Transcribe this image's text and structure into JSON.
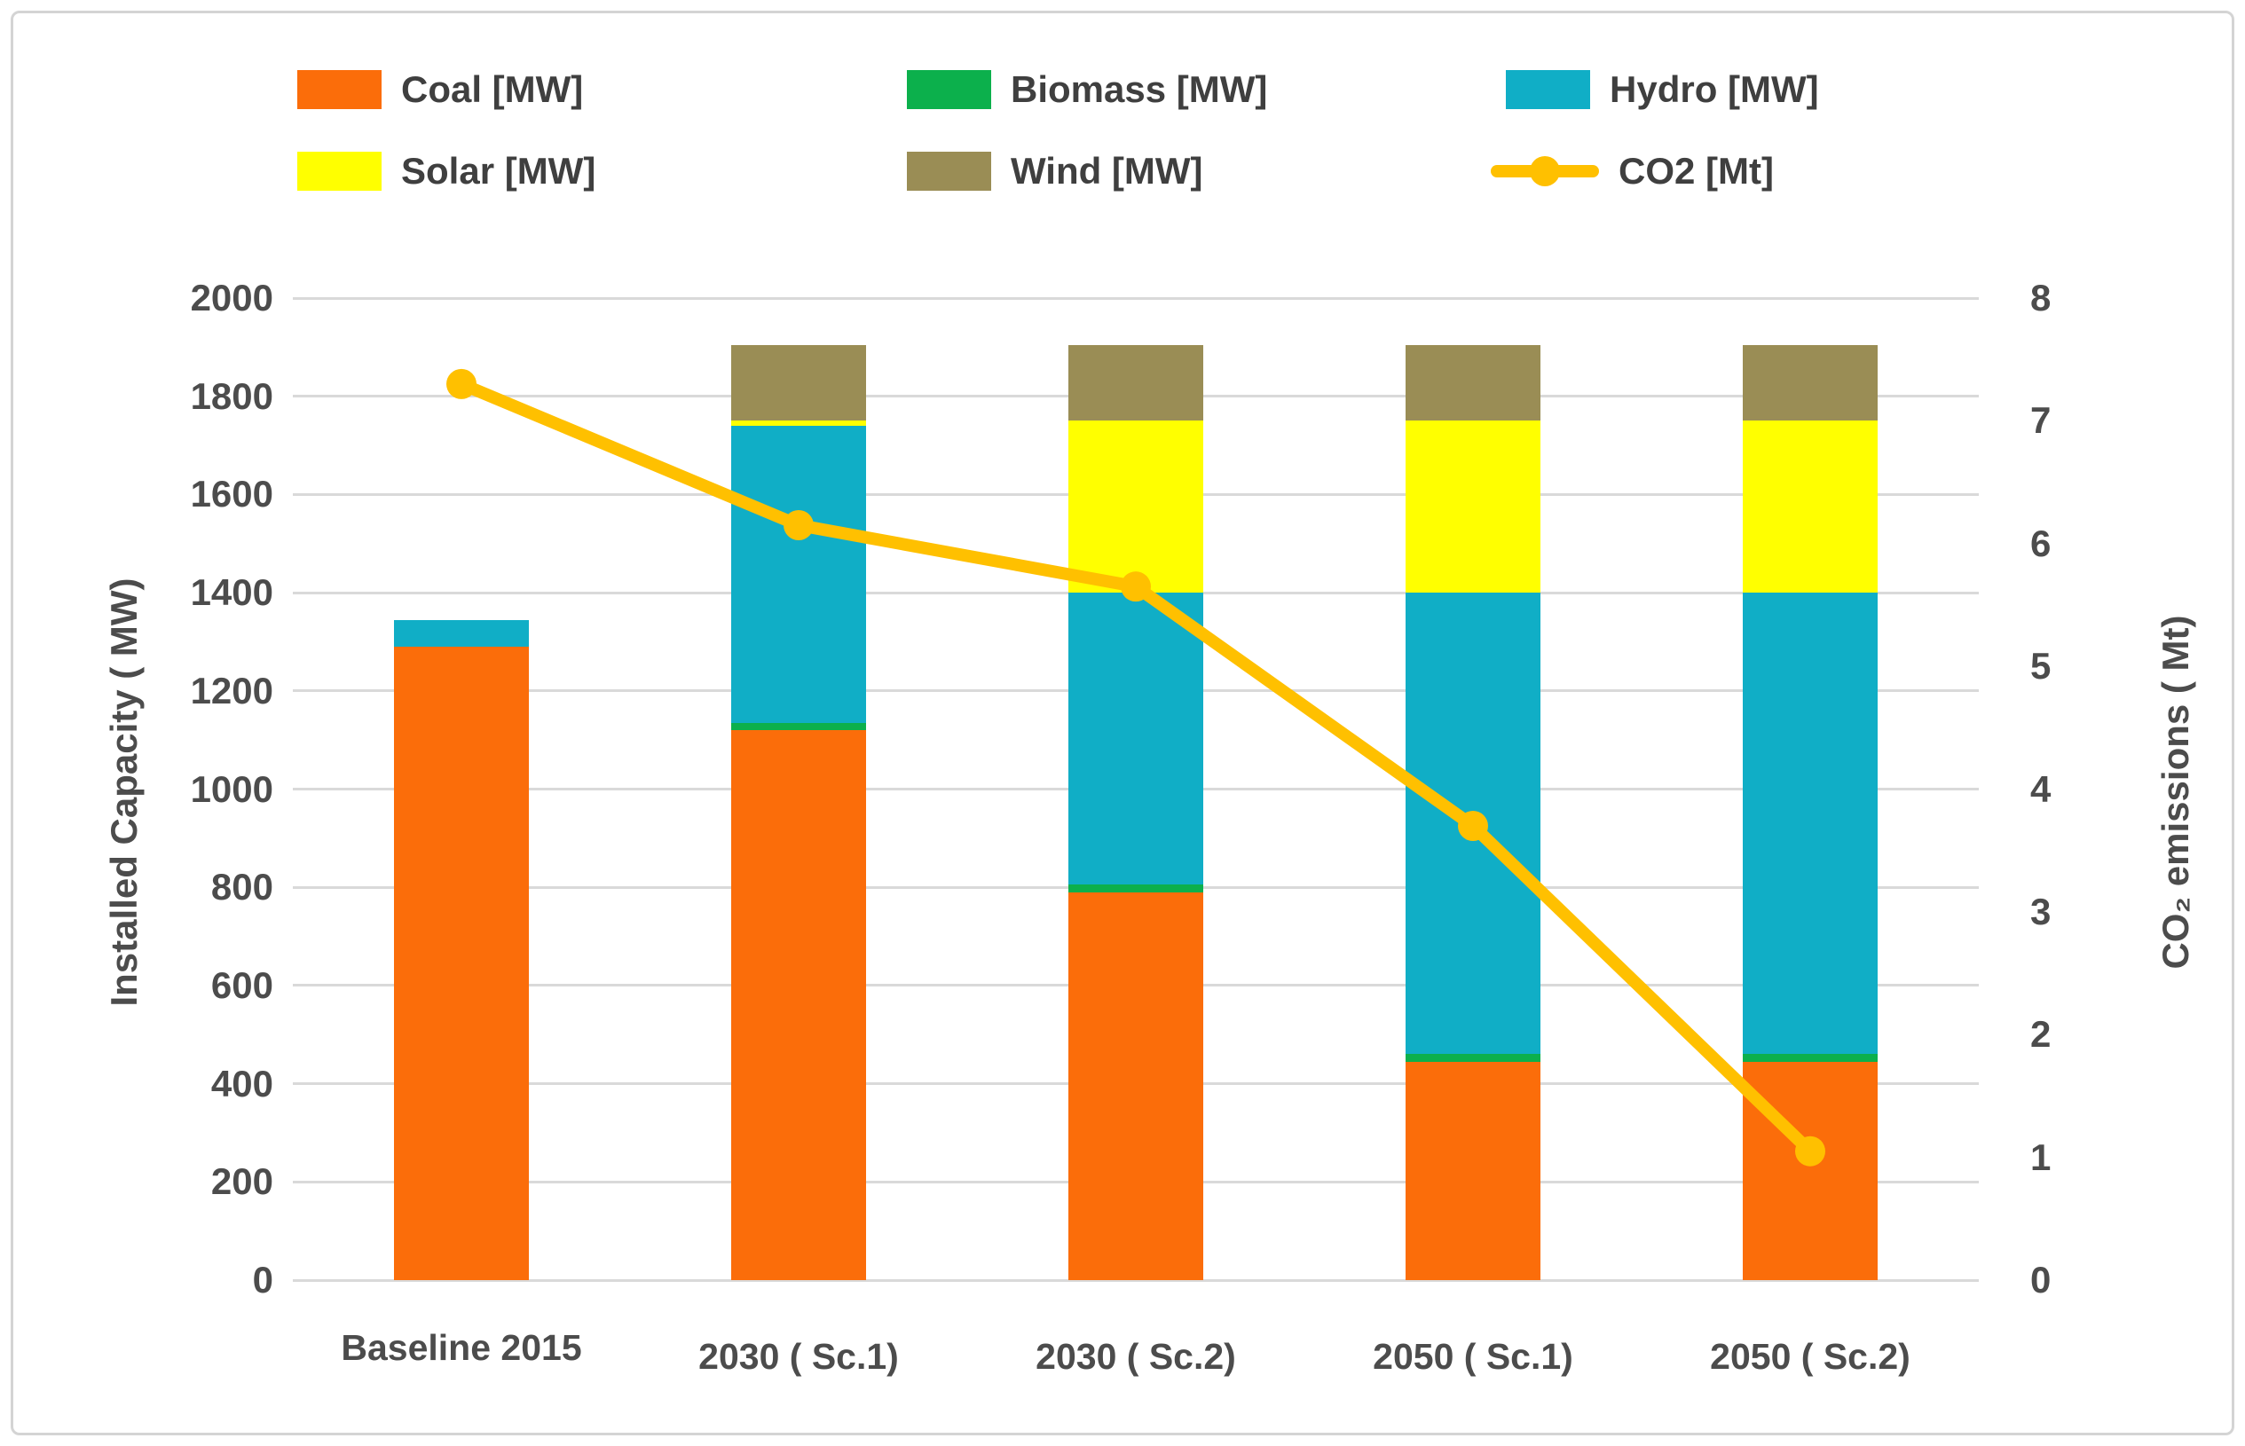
{
  "chart_data": {
    "type": "bar",
    "subtype": "stacked-bar-with-line",
    "categories": [
      "Baseline 2015",
      "2030  ( Sc.1)",
      "2030  ( Sc.2)",
      "2050 ( Sc.1)",
      "2050 ( Sc.2)"
    ],
    "bar_series": [
      {
        "name": "Coal [MW]",
        "color": "#fb6d0a",
        "values": [
          1290,
          1120,
          790,
          445,
          445
        ]
      },
      {
        "name": "Biomass [MW]",
        "color": "#0cb04c",
        "values": [
          0,
          15,
          15,
          15,
          15
        ]
      },
      {
        "name": "Hydro [MW]",
        "color": "#10aec6",
        "values": [
          55,
          605,
          595,
          940,
          940
        ]
      },
      {
        "name": "Solar [MW]",
        "color": "#ffff00",
        "values": [
          0,
          10,
          350,
          350,
          350
        ]
      },
      {
        "name": "Wind [MW]",
        "color": "#9a8d55",
        "values": [
          0,
          155,
          155,
          155,
          155
        ]
      }
    ],
    "line_series": {
      "name": "CO2 [Mt]",
      "color": "#ffc000",
      "values": [
        7.3,
        6.15,
        5.65,
        3.7,
        1.05
      ]
    },
    "left_axis": {
      "title": "Installed Capacity ( MW)",
      "min": 0,
      "max": 2000,
      "step": 200,
      "ticks": [
        0,
        200,
        400,
        600,
        800,
        1000,
        1200,
        1400,
        1600,
        1800,
        2000
      ]
    },
    "right_axis": {
      "title": "CO₂ emissions ( Mt)",
      "min": 0,
      "max": 8,
      "step": 1,
      "ticks": [
        0,
        1,
        2,
        3,
        4,
        5,
        6,
        7,
        8
      ]
    },
    "grid": true,
    "gridline_color": "#d9d9d9",
    "text_color": "#4c4c4c",
    "legend_position": "top"
  }
}
